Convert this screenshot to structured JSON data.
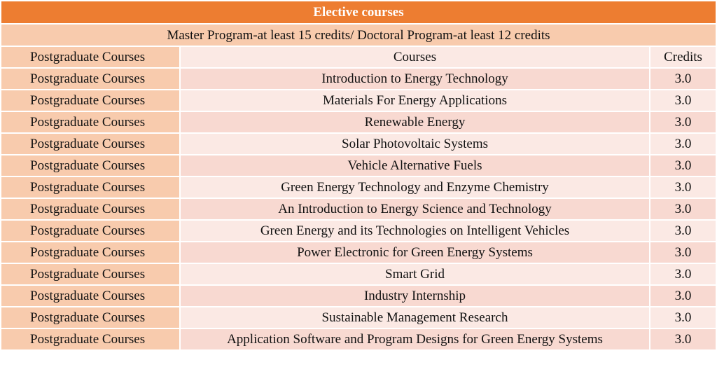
{
  "table": {
    "title": "Elective courses",
    "subtitle": "Master Program-at least 15 credits/  Doctoral Program-at least 12 credits",
    "headers": [
      "Postgraduate Courses",
      "Courses",
      "Credits"
    ],
    "rows": [
      [
        "Postgraduate Courses",
        "Introduction to Energy Technology",
        "3.0"
      ],
      [
        "Postgraduate Courses",
        "Materials For Energy Applications",
        "3.0"
      ],
      [
        "Postgraduate Courses",
        "Renewable Energy",
        "3.0"
      ],
      [
        "Postgraduate Courses",
        "Solar Photovoltaic Systems",
        "3.0"
      ],
      [
        "Postgraduate Courses",
        "Vehicle Alternative Fuels",
        "3.0"
      ],
      [
        "Postgraduate Courses",
        "Green Energy Technology and Enzyme Chemistry",
        "3.0"
      ],
      [
        "Postgraduate Courses",
        "An Introduction to Energy Science and Technology",
        "3.0"
      ],
      [
        "Postgraduate Courses",
        "Green Energy and its Technologies on Intelligent Vehicles",
        "3.0"
      ],
      [
        "Postgraduate Courses",
        "Power Electronic for Green Energy Systems",
        "3.0"
      ],
      [
        "Postgraduate Courses",
        "Smart Grid",
        "3.0"
      ],
      [
        "Postgraduate Courses",
        "Industry Internship",
        "3.0"
      ],
      [
        "Postgraduate Courses",
        "Sustainable Management Research",
        "3.0"
      ],
      [
        "Postgraduate Courses",
        "Application Software and Program Designs for Green Energy Systems",
        "3.0"
      ]
    ]
  }
}
